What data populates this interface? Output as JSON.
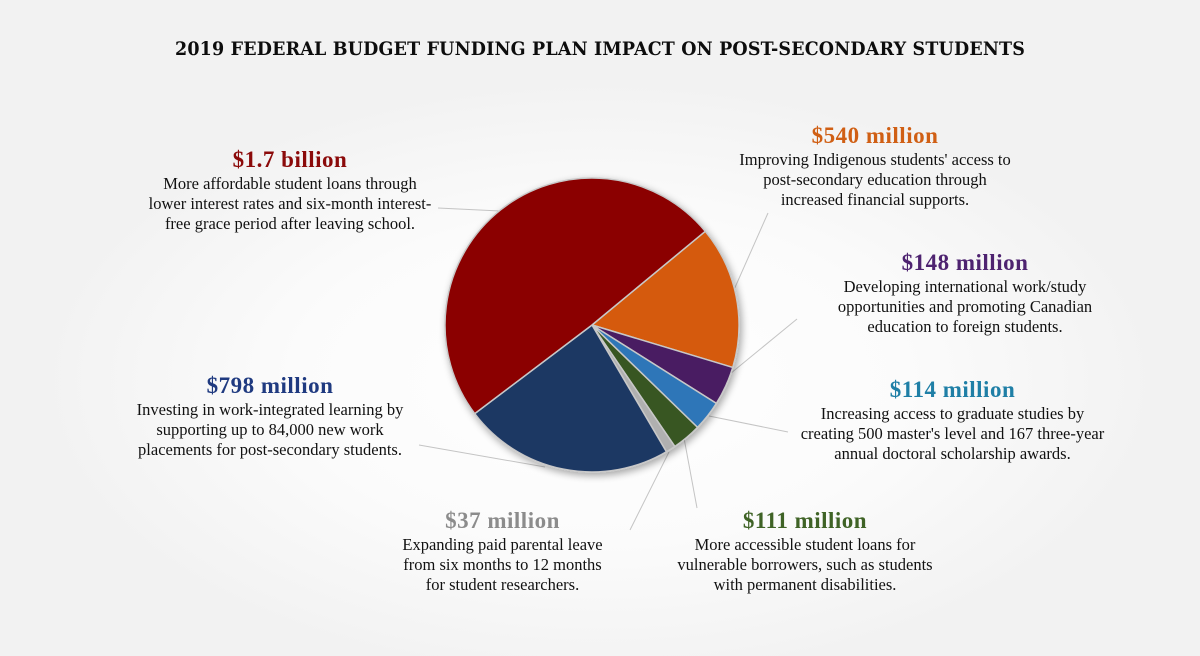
{
  "title": "2019 FEDERAL BUDGET  FUNDING PLAN IMPACT ON POST-SECONDARY STUDENTS",
  "colors": {
    "background": "#f2f2f2",
    "slice_border": "#c8c8c8",
    "leader_line": "#bfbfbf"
  },
  "chart_data": {
    "type": "pie",
    "title": "2019 FEDERAL BUDGET  FUNDING PLAN IMPACT ON POST-SECONDARY STUDENTS",
    "unit": "CAD millions",
    "start_angle_deg": -39.6,
    "direction": "clockwise",
    "slices": [
      {
        "label": "$540 million",
        "value": 540,
        "color": "#d55a0a",
        "description": "Improving  Indigenous  students' access to\npost-secondary education through\nincreased financial supports."
      },
      {
        "label": "$148 million",
        "value": 148,
        "color": "#4a1c62",
        "description": "Developing international work/study\nopportunities and promoting Canadian\neducation to foreign students."
      },
      {
        "label": "$114 million",
        "value": 114,
        "color": "#2e76b8",
        "description": "Increasing  access to graduate studies by\ncreating 500 master's level and 167 three-year\nannual doctoral scholarship awards."
      },
      {
        "label": "$111 million",
        "value": 111,
        "color": "#375623",
        "description": "More accessible student loans for\nvulnerable borrowers, such as students\nwith permanent disabilities."
      },
      {
        "label": "$37 million",
        "value": 37,
        "color": "#b0b0b0",
        "description": "Expanding paid parental leave\nfrom six months to 12 months\nfor student researchers."
      },
      {
        "label": "$798 million",
        "value": 798,
        "color": "#1f3864",
        "description": "Investing in work-integrated learning by\nsupporting up to 84,000 new work\nplacements for post-secondary students."
      },
      {
        "label": "$1.7 billion",
        "value": 1700,
        "color": "#8b0000",
        "description": "More affordable student loans through\nlower interest rates and six-month  interest-\nfree grace period after leaving school."
      }
    ]
  },
  "labels": {
    "red": {
      "amount": "$1.7 billion",
      "color": "#8b0a0a",
      "desc": "More affordable student loans through\nlower interest rates and six-month  interest-\nfree grace period after leaving school."
    },
    "orange": {
      "amount": "$540 million",
      "color": "#d05f14",
      "desc": "Improving  Indigenous  students' access to\npost-secondary education through\nincreased financial  supports."
    },
    "purple": {
      "amount": "$148 million",
      "color": "#4e2370",
      "desc": "Developing international work/study\nopportunities and promoting  Canadian\neducation to foreign  students."
    },
    "blue": {
      "amount": "$114 million",
      "color": "#1f7fa6",
      "desc": "Increasing  access to graduate studies by\ncreating 500 master's level and 167 three-year\nannual doctoral scholarship awards."
    },
    "green": {
      "amount": "$111 million",
      "color": "#3f6326",
      "desc": "More accessible student loans for\nvulnerable borrowers, such as students\nwith permanent  disabilities."
    },
    "gray": {
      "amount": "$37 million",
      "color": "#8c8c8c",
      "desc": "Expanding  paid parental leave\nfrom six months  to 12 months\nfor student researchers."
    },
    "navy": {
      "amount": "$798 million",
      "color": "#1f3a80",
      "desc": "Investing  in work-integrated learning by\nsupporting up to 84,000 new work\nplacements for post-secondary students."
    }
  }
}
